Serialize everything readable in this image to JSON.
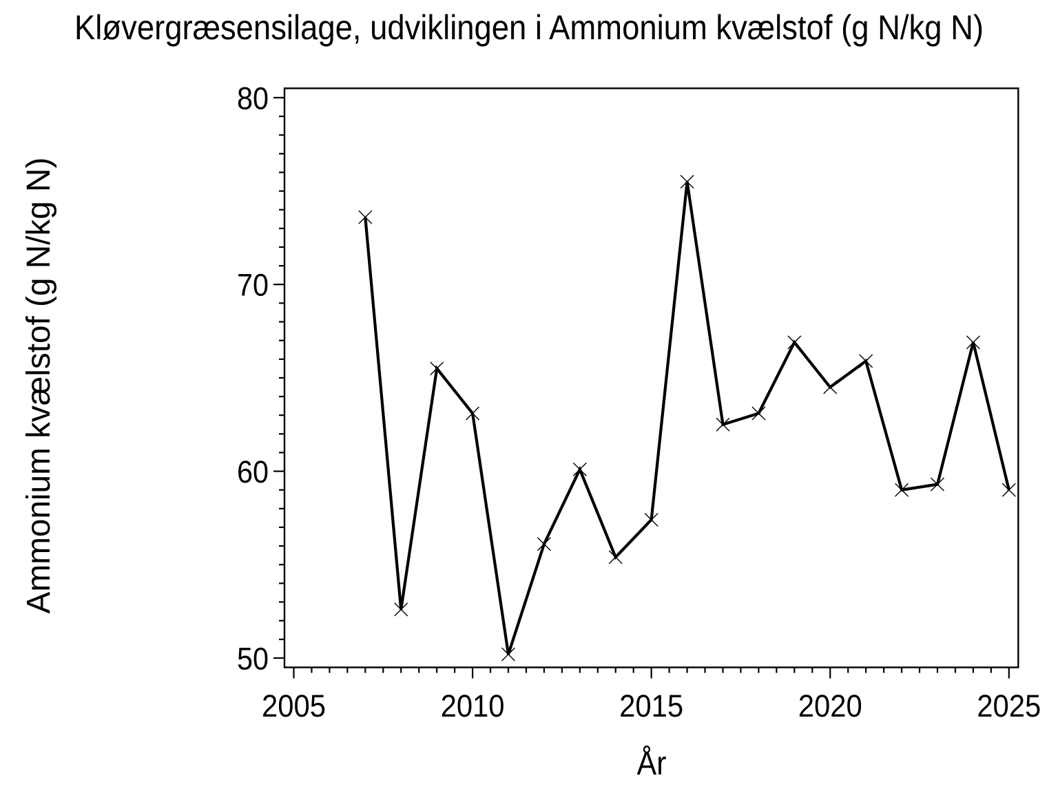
{
  "figure": {
    "background": "#ffffff",
    "ink_color": "#000000"
  },
  "chart_data": {
    "type": "line",
    "title": "Kløvergræsensilage, udviklingen i Ammonium kvælstof (g N/kg N)",
    "xlabel": "År",
    "ylabel": "Ammonium kvælstof (g N/kg N)",
    "series": [
      {
        "name": "Ammonium kvælstof",
        "x": [
          2007,
          2008,
          2009,
          2010,
          2011,
          2012,
          2013,
          2014,
          2015,
          2016,
          2017,
          2018,
          2019,
          2020,
          2021,
          2022,
          2023,
          2024,
          2025
        ],
        "y": [
          73.6,
          52.6,
          65.5,
          63.1,
          50.2,
          56.1,
          60.1,
          55.4,
          57.4,
          75.5,
          62.5,
          63.1,
          66.9,
          64.5,
          65.9,
          59.0,
          59.3,
          66.9,
          59.0
        ]
      }
    ],
    "xlim": [
      2004.74,
      2025.26
    ],
    "ylim": [
      49.5,
      80.5
    ],
    "x_major_ticks": [
      2005,
      2010,
      2015,
      2020,
      2025
    ],
    "x_major_tick_labels": [
      "2005",
      "2010",
      "2015",
      "2020",
      "2025"
    ],
    "x_minor_tick_step": 0.5,
    "y_major_ticks": [
      50,
      60,
      70,
      80
    ],
    "y_major_tick_labels": [
      "50",
      "60",
      "70",
      "80"
    ],
    "y_minor_tick_step": 1,
    "grid": false,
    "legend": "none",
    "marker": "x",
    "line_color": "#000000",
    "marker_color": "#000000"
  }
}
